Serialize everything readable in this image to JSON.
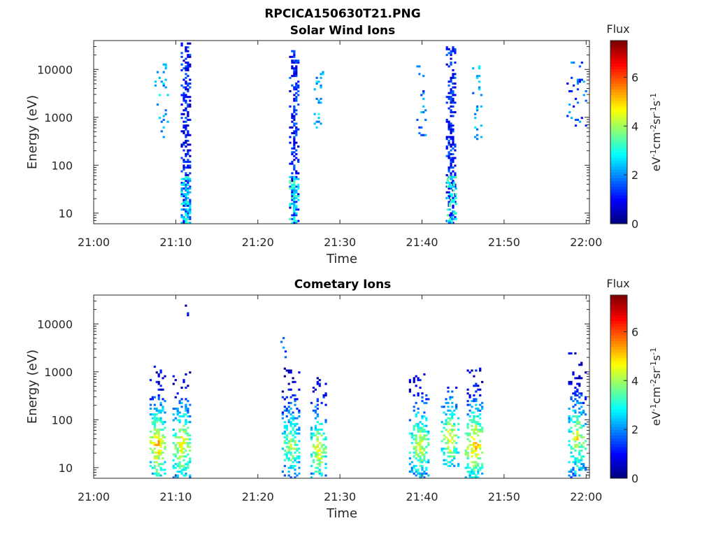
{
  "figure": {
    "file_title": "RPCICA150630T21.PNG"
  },
  "chart_data": [
    {
      "type": "heatmap",
      "title": "Solar Wind Ions",
      "xlabel": "Time",
      "ylabel": "Energy (eV)",
      "xticks": [
        "21:00",
        "21:10",
        "21:20",
        "21:30",
        "21:40",
        "21:50",
        "22:00"
      ],
      "xlim_minutes": [
        0,
        60.4
      ],
      "yticks": [
        "10",
        "100",
        "1000",
        "10000"
      ],
      "ylim": [
        6,
        40000
      ],
      "yscale": "log",
      "colorbar": {
        "label_top": "Flux",
        "ticks": [
          "0",
          "2",
          "4",
          "6"
        ],
        "range": [
          0,
          7.5
        ]
      },
      "bursts": [
        {
          "t": 8.2,
          "spread": 0.8,
          "emin": 300,
          "emax": 15000,
          "flux": 2.2,
          "density": 0.12
        },
        {
          "t": 11.2,
          "spread": 0.6,
          "emin": 6,
          "emax": 35000,
          "flux": 1.0,
          "density": 0.55
        },
        {
          "t": 11.2,
          "spread": 0.6,
          "emin": 6,
          "emax": 60,
          "flux": 2.6,
          "density": 0.7
        },
        {
          "t": 24.3,
          "spread": 0.5,
          "emin": 6,
          "emax": 25000,
          "flux": 1.0,
          "density": 0.6
        },
        {
          "t": 24.3,
          "spread": 0.5,
          "emin": 6,
          "emax": 60,
          "flux": 2.8,
          "density": 0.7
        },
        {
          "t": 27.4,
          "spread": 0.6,
          "emin": 500,
          "emax": 9000,
          "flux": 2.3,
          "density": 0.22
        },
        {
          "t": 39.9,
          "spread": 0.6,
          "emin": 400,
          "emax": 15000,
          "flux": 1.8,
          "density": 0.18
        },
        {
          "t": 43.5,
          "spread": 0.6,
          "emin": 6,
          "emax": 30000,
          "flux": 1.1,
          "density": 0.55
        },
        {
          "t": 43.5,
          "spread": 0.5,
          "emin": 6,
          "emax": 60,
          "flux": 3.0,
          "density": 0.6
        },
        {
          "t": 46.7,
          "spread": 0.6,
          "emin": 300,
          "emax": 20000,
          "flux": 2.2,
          "density": 0.16
        },
        {
          "t": 58.8,
          "spread": 1.2,
          "emin": 600,
          "emax": 15000,
          "flux": 1.6,
          "density": 0.14
        }
      ]
    },
    {
      "type": "heatmap",
      "title": "Cometary Ions",
      "xlabel": "Time",
      "ylabel": "Energy (eV)",
      "xticks": [
        "21:00",
        "21:10",
        "21:20",
        "21:30",
        "21:40",
        "21:50",
        "22:00"
      ],
      "xlim_minutes": [
        0,
        60.4
      ],
      "yticks": [
        "10",
        "100",
        "1000",
        "10000"
      ],
      "ylim": [
        6,
        40000
      ],
      "yscale": "log",
      "colorbar": {
        "label_top": "Flux",
        "ticks": [
          "0",
          "2",
          "4",
          "6"
        ],
        "range": [
          0,
          7.5
        ]
      },
      "bursts": [
        {
          "t": 7.7,
          "spread": 0.9,
          "emin": 6,
          "emax": 1500,
          "flux": 5.5,
          "peak_e": 30,
          "density": 0.75
        },
        {
          "t": 10.7,
          "spread": 1.1,
          "emin": 6,
          "emax": 1000,
          "flux": 5.0,
          "peak_e": 30,
          "density": 0.75
        },
        {
          "t": 11.3,
          "spread": 0.2,
          "emin": 15000,
          "emax": 25000,
          "flux": 1.0,
          "peak_e": 20000,
          "density": 0.8
        },
        {
          "t": 22.9,
          "spread": 0.4,
          "emin": 1500,
          "emax": 8000,
          "flux": 2.2,
          "peak_e": 3000,
          "density": 0.3
        },
        {
          "t": 24.0,
          "spread": 1.1,
          "emin": 6,
          "emax": 1200,
          "flux": 4.2,
          "peak_e": 30,
          "density": 0.65
        },
        {
          "t": 27.3,
          "spread": 0.9,
          "emin": 6,
          "emax": 1100,
          "flux": 4.8,
          "peak_e": 25,
          "density": 0.7
        },
        {
          "t": 39.6,
          "spread": 1.2,
          "emin": 6,
          "emax": 900,
          "flux": 4.6,
          "peak_e": 30,
          "density": 0.7
        },
        {
          "t": 43.3,
          "spread": 1.0,
          "emin": 10,
          "emax": 500,
          "flux": 4.8,
          "peak_e": 40,
          "density": 0.65
        },
        {
          "t": 46.3,
          "spread": 1.1,
          "emin": 6,
          "emax": 1200,
          "flux": 5.4,
          "peak_e": 30,
          "density": 0.72
        },
        {
          "t": 58.8,
          "spread": 1.0,
          "emin": 6,
          "emax": 2500,
          "flux": 4.6,
          "peak_e": 40,
          "density": 0.7
        }
      ]
    }
  ],
  "colors": {
    "axis": "#262626",
    "grid": "none",
    "colormap": "jet"
  }
}
